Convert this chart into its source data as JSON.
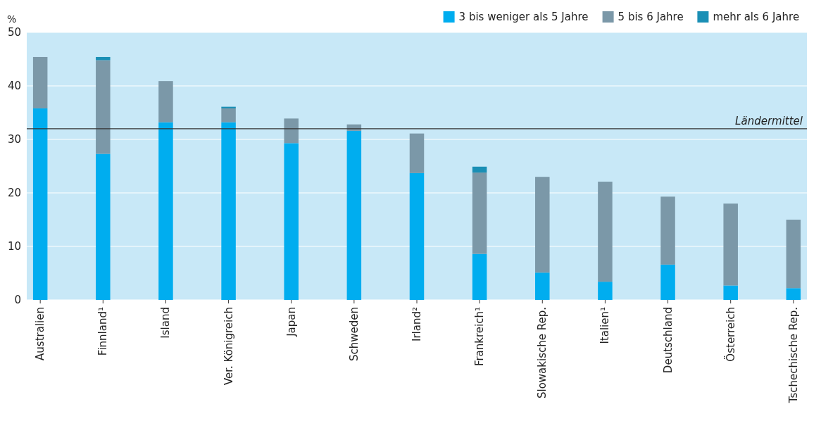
{
  "chart_data": {
    "type": "bar",
    "stacked": true,
    "ylabel": "%",
    "categories": [
      "Australien",
      "Finnland¹",
      "Island",
      "Ver. Königreich",
      "Japan",
      "Schweden",
      "Irland²",
      "Frankreich¹",
      "Slowakische Rep.",
      "Italien¹",
      "Deutschland",
      "Österreich",
      "Tschechische Rep."
    ],
    "series": [
      {
        "name": "3 bis weniger als 5 Jahre",
        "color": "#00adef",
        "values": [
          35.8,
          27.3,
          33.2,
          33.2,
          29.3,
          31.6,
          23.7,
          8.6,
          5.1,
          3.4,
          6.6,
          2.7,
          2.2
        ]
      },
      {
        "name": "5 bis 6 Jahre",
        "color": "#7b98a8",
        "values": [
          9.6,
          17.5,
          7.7,
          2.6,
          4.6,
          1.2,
          7.4,
          15.2,
          17.9,
          18.7,
          12.7,
          15.3,
          12.8
        ]
      },
      {
        "name": "mehr als 6 Jahre",
        "color": "#1a8fb5",
        "values": [
          null,
          0.6,
          null,
          0.3,
          null,
          null,
          null,
          1.1,
          null,
          null,
          null,
          null,
          null
        ]
      }
    ],
    "ylim": [
      0,
      50
    ],
    "yticks": [
      0,
      10,
      20,
      30,
      40,
      50
    ],
    "grid": "y",
    "legend": "top right",
    "ref_lines": [
      {
        "axis": "y",
        "value": 32,
        "label": "Ländermittel",
        "color": "#333333"
      }
    ]
  }
}
